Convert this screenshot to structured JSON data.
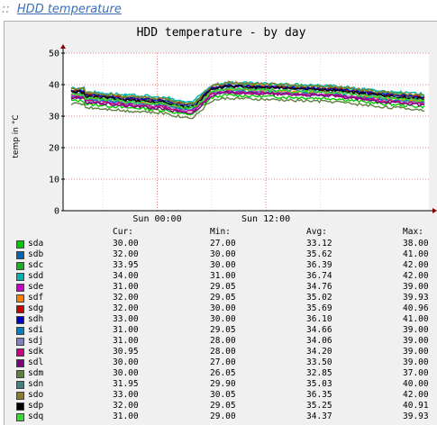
{
  "header": {
    "separator": "::",
    "link_label": "HDD temperature"
  },
  "chart_data": {
    "type": "line",
    "title": "HDD temperature - by day",
    "ylabel": "temp in °C",
    "xlabel": "",
    "ylim": [
      0,
      50
    ],
    "yticks": [
      0,
      10,
      20,
      30,
      40,
      50
    ],
    "x_tick_labels": [
      "Sun 00:00",
      "Sun 12:00"
    ],
    "x_range_hours": [
      -10.4,
      30
    ],
    "grid": true,
    "legend_headers": [
      "",
      "Cur:",
      "Min:",
      "Avg:",
      "Max:"
    ],
    "series": [
      {
        "name": "sda",
        "color": "#00cc00",
        "cur": "30.00",
        "min": "27.00",
        "avg": "33.12",
        "max": "38.00"
      },
      {
        "name": "sdb",
        "color": "#0066b3",
        "cur": "32.00",
        "min": "30.00",
        "avg": "35.62",
        "max": "41.00"
      },
      {
        "name": "sdc",
        "color": "#18b020",
        "cur": "33.95",
        "min": "30.00",
        "avg": "36.39",
        "max": "42.00"
      },
      {
        "name": "sdd",
        "color": "#00b3b3",
        "cur": "34.00",
        "min": "31.00",
        "avg": "36.74",
        "max": "42.00"
      },
      {
        "name": "sde",
        "color": "#cc00cc",
        "cur": "31.00",
        "min": "29.05",
        "avg": "34.76",
        "max": "39.00"
      },
      {
        "name": "sdf",
        "color": "#ff8000",
        "cur": "32.00",
        "min": "29.05",
        "avg": "35.02",
        "max": "39.93"
      },
      {
        "name": "sdg",
        "color": "#cc0000",
        "cur": "32.00",
        "min": "30.00",
        "avg": "35.69",
        "max": "40.96"
      },
      {
        "name": "sdh",
        "color": "#0000cc",
        "cur": "33.00",
        "min": "30.00",
        "avg": "36.10",
        "max": "41.00"
      },
      {
        "name": "sdi",
        "color": "#0080c0",
        "cur": "31.00",
        "min": "29.05",
        "avg": "34.66",
        "max": "39.00"
      },
      {
        "name": "sdj",
        "color": "#8080c0",
        "cur": "31.00",
        "min": "28.00",
        "avg": "34.06",
        "max": "39.00"
      },
      {
        "name": "sdk",
        "color": "#cc0080",
        "cur": "30.95",
        "min": "28.00",
        "avg": "34.20",
        "max": "39.00"
      },
      {
        "name": "sdl",
        "color": "#800080",
        "cur": "30.00",
        "min": "27.00",
        "avg": "33.50",
        "max": "39.00"
      },
      {
        "name": "sdm",
        "color": "#608040",
        "cur": "30.00",
        "min": "26.05",
        "avg": "32.85",
        "max": "37.00"
      },
      {
        "name": "sdn",
        "color": "#408080",
        "cur": "31.95",
        "min": "29.90",
        "avg": "35.03",
        "max": "40.00"
      },
      {
        "name": "sdo",
        "color": "#8c7a29",
        "cur": "33.00",
        "min": "30.05",
        "avg": "36.35",
        "max": "42.00"
      },
      {
        "name": "sdp",
        "color": "#000000",
        "cur": "32.00",
        "min": "29.05",
        "avg": "35.25",
        "max": "40.91"
      },
      {
        "name": "sdq",
        "color": "#33dd33",
        "cur": "31.00",
        "min": "29.00",
        "avg": "34.37",
        "max": "39.93"
      }
    ]
  }
}
